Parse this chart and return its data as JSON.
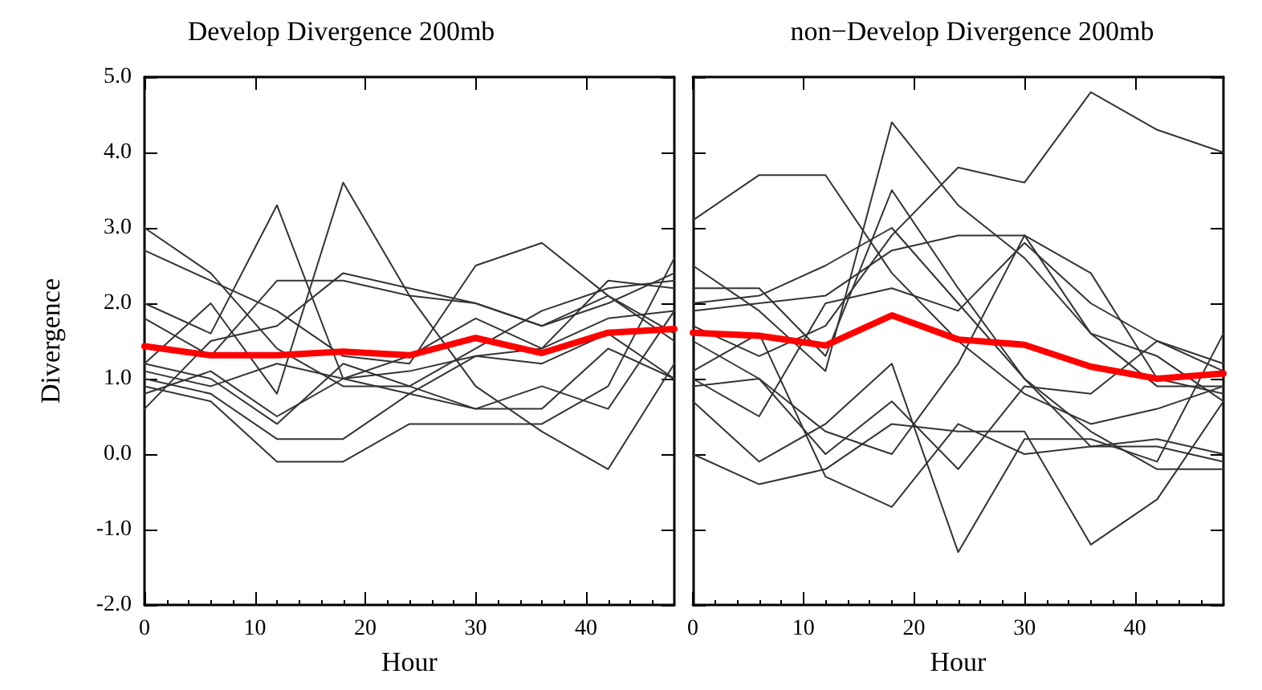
{
  "chart_data": [
    {
      "type": "line",
      "title": "Develop Divergence 200mb",
      "xlabel": "Hour",
      "ylabel": "Divergence",
      "x": [
        0,
        6,
        12,
        18,
        24,
        30,
        36,
        42,
        48
      ],
      "xlim": [
        0,
        48
      ],
      "xticks": [
        0,
        10,
        20,
        30,
        40
      ],
      "ylim": [
        -2,
        5
      ],
      "yticks": [
        {
          "value": -2,
          "label": "-2.0"
        },
        {
          "value": -1,
          "label": "-1.0"
        },
        {
          "value": 0,
          "label": "0.0"
        },
        {
          "value": 1,
          "label": "1.0"
        },
        {
          "value": 2,
          "label": "2.0"
        },
        {
          "value": 3,
          "label": "3.0"
        },
        {
          "value": 4,
          "label": "4.0"
        },
        {
          "value": 5,
          "label": "5.0"
        }
      ],
      "grid": false,
      "marker": "none",
      "line_style": "solid",
      "series": [
        {
          "color": "#333333",
          "values": [
            3.0,
            2.4,
            1.4,
            0.9,
            0.9,
            0.6,
            0.9,
            0.6,
            1.9
          ]
        },
        {
          "color": "#333333",
          "values": [
            2.7,
            2.3,
            1.9,
            1.3,
            1.2,
            2.5,
            2.8,
            2.1,
            1.5
          ]
        },
        {
          "color": "#333333",
          "values": [
            2.0,
            1.6,
            3.3,
            1.0,
            0.8,
            1.3,
            1.4,
            2.3,
            2.2
          ]
        },
        {
          "color": "#333333",
          "values": [
            1.8,
            1.3,
            2.3,
            2.3,
            2.1,
            2.0,
            1.7,
            2.1,
            1.6
          ]
        },
        {
          "color": "#333333",
          "values": [
            1.2,
            2.0,
            0.8,
            3.6,
            2.1,
            0.9,
            0.3,
            -0.2,
            1.2
          ]
        },
        {
          "color": "#333333",
          "values": [
            1.0,
            0.8,
            0.2,
            0.2,
            0.8,
            0.6,
            0.6,
            1.4,
            1.0
          ]
        },
        {
          "color": "#333333",
          "values": [
            0.9,
            0.7,
            -0.1,
            -0.1,
            0.4,
            0.4,
            0.4,
            0.9,
            2.6
          ]
        },
        {
          "color": "#333333",
          "values": [
            1.2,
            1.0,
            0.4,
            1.2,
            0.9,
            1.4,
            1.9,
            2.2,
            2.3
          ]
        },
        {
          "color": "#333333",
          "values": [
            0.6,
            1.5,
            1.7,
            2.4,
            2.2,
            2.0,
            1.7,
            2.0,
            2.4
          ]
        },
        {
          "color": "#333333",
          "values": [
            1.1,
            0.9,
            1.2,
            1.0,
            1.3,
            1.8,
            1.4,
            1.8,
            1.9
          ]
        },
        {
          "color": "#333333",
          "values": [
            0.8,
            1.1,
            0.5,
            1.0,
            1.1,
            1.3,
            1.2,
            1.6,
            1.0
          ]
        },
        {
          "color": "#ff0000",
          "values": [
            1.43,
            1.31,
            1.31,
            1.36,
            1.31,
            1.54,
            1.34,
            1.61,
            1.66
          ]
        }
      ]
    },
    {
      "type": "line",
      "title": "non−Develop Divergence 200mb",
      "xlabel": "Hour",
      "x": [
        0,
        6,
        12,
        18,
        24,
        30,
        36,
        42,
        48
      ],
      "xlim": [
        0,
        48
      ],
      "xticks": [
        0,
        10,
        20,
        30,
        40
      ],
      "ylim": [
        -2,
        5
      ],
      "yticks": [
        {
          "value": -2,
          "label": null
        },
        {
          "value": -1,
          "label": null
        },
        {
          "value": 0,
          "label": null
        },
        {
          "value": 1,
          "label": null
        },
        {
          "value": 2,
          "label": null
        },
        {
          "value": 3,
          "label": null
        },
        {
          "value": 4,
          "label": null
        },
        {
          "value": 5,
          "label": null
        }
      ],
      "tick_labels": "x",
      "grid": false,
      "marker": "none",
      "line_style": "solid",
      "series": [
        {
          "color": "#333333",
          "values": [
            3.1,
            3.7,
            3.7,
            2.4,
            1.5,
            0.8,
            0.4,
            0.6,
            0.9
          ]
        },
        {
          "color": "#333333",
          "values": [
            1.7,
            1.3,
            1.7,
            2.9,
            3.8,
            3.6,
            4.8,
            4.3,
            4.0
          ]
        },
        {
          "color": "#333333",
          "values": [
            2.5,
            1.9,
            1.1,
            4.4,
            3.3,
            2.6,
            1.6,
            1.3,
            0.7
          ]
        },
        {
          "color": "#333333",
          "values": [
            2.2,
            2.2,
            1.3,
            3.5,
            2.2,
            1.0,
            0.1,
            0.1,
            -0.1
          ]
        },
        {
          "color": "#333333",
          "values": [
            2.0,
            2.1,
            2.5,
            3.0,
            2.0,
            1.0,
            0.3,
            -0.2,
            -0.2
          ]
        },
        {
          "color": "#333333",
          "values": [
            1.9,
            2.0,
            2.1,
            2.7,
            2.9,
            2.9,
            2.4,
            1.0,
            0.8
          ]
        },
        {
          "color": "#333333",
          "values": [
            1.0,
            0.5,
            2.0,
            2.2,
            1.9,
            2.8,
            2.0,
            1.5,
            1.2
          ]
        },
        {
          "color": "#333333",
          "values": [
            1.5,
            1.0,
            0.3,
            0.0,
            1.2,
            2.9,
            1.6,
            0.9,
            0.9
          ]
        },
        {
          "color": "#333333",
          "values": [
            0.7,
            -0.1,
            0.4,
            1.2,
            -1.3,
            0.2,
            0.2,
            -0.1,
            1.6
          ]
        },
        {
          "color": "#333333",
          "values": [
            0.0,
            -0.4,
            -0.2,
            0.4,
            0.3,
            0.3,
            -1.2,
            -0.6,
            0.7
          ]
        },
        {
          "color": "#333333",
          "values": [
            1.1,
            1.6,
            -0.3,
            -0.7,
            0.4,
            0.0,
            0.1,
            0.2,
            0.0
          ]
        },
        {
          "color": "#333333",
          "values": [
            0.9,
            1.0,
            0.0,
            0.7,
            -0.2,
            0.9,
            0.8,
            1.5,
            1.1
          ]
        },
        {
          "color": "#ff0000",
          "values": [
            1.61,
            1.57,
            1.44,
            1.84,
            1.52,
            1.45,
            1.16,
            1.0,
            1.07
          ]
        }
      ]
    }
  ]
}
